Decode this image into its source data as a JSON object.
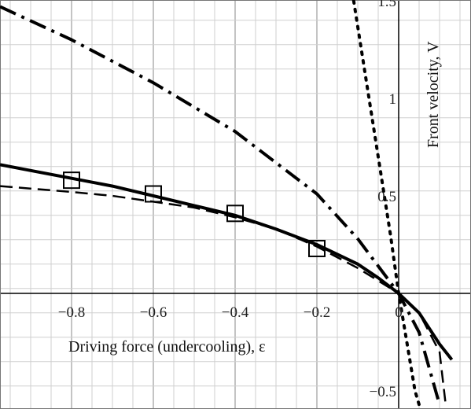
{
  "chart_data": {
    "type": "line",
    "title": "",
    "xlabel": "Driving force (undercooling), ε",
    "ylabel": "Front velocity, V",
    "xlim": [
      -0.975,
      0.175
    ],
    "ylim": [
      -0.57,
      1.5
    ],
    "x_ticks": [
      -0.8,
      -0.6,
      -0.4,
      -0.2,
      0
    ],
    "x_tick_labels": [
      "−0.8",
      "−0.6",
      "−0.4",
      "−0.2",
      "0"
    ],
    "y_ticks": [
      1.5,
      1,
      0.5,
      -0.5
    ],
    "y_tick_labels": [
      "1.5",
      "1",
      "0.5",
      "−0.5"
    ],
    "grid": true,
    "series": [
      {
        "style": "solid",
        "x": [
          -0.975,
          -0.9,
          -0.8,
          -0.7,
          -0.6,
          -0.5,
          -0.4,
          -0.3,
          -0.2,
          -0.1,
          -0.05,
          0,
          0.05,
          0.1,
          0.13
        ],
        "y": [
          0.66,
          0.63,
          0.59,
          0.55,
          0.5,
          0.45,
          0.4,
          0.33,
          0.25,
          0.15,
          0.08,
          0,
          -0.1,
          -0.26,
          -0.34
        ]
      },
      {
        "style": "dashed",
        "x": [
          -0.975,
          -0.8,
          -0.7,
          -0.6,
          -0.5,
          -0.4,
          -0.3,
          -0.2,
          -0.1,
          0,
          0.05,
          0.1,
          0.115
        ],
        "y": [
          0.55,
          0.52,
          0.5,
          0.47,
          0.44,
          0.39,
          0.33,
          0.24,
          0.13,
          0,
          -0.1,
          -0.3,
          -0.57
        ]
      },
      {
        "style": "dash-dot",
        "x": [
          -0.975,
          -0.8,
          -0.6,
          -0.4,
          -0.2,
          -0.1,
          0,
          0.05,
          0.1
        ],
        "y": [
          1.47,
          1.3,
          1.08,
          0.83,
          0.51,
          0.28,
          0,
          -0.2,
          -0.57
        ]
      },
      {
        "style": "dotted",
        "x": [
          -0.11,
          -0.08,
          -0.05,
          -0.02,
          0,
          0.02,
          0.04,
          0.05
        ],
        "y": [
          1.5,
          1.1,
          0.7,
          0.3,
          0,
          -0.25,
          -0.5,
          -0.57
        ]
      },
      {
        "style": "markers",
        "marker": "square",
        "x": [
          -0.8,
          -0.6,
          -0.4,
          -0.2
        ],
        "y": [
          0.58,
          0.51,
          0.41,
          0.23
        ]
      }
    ]
  }
}
